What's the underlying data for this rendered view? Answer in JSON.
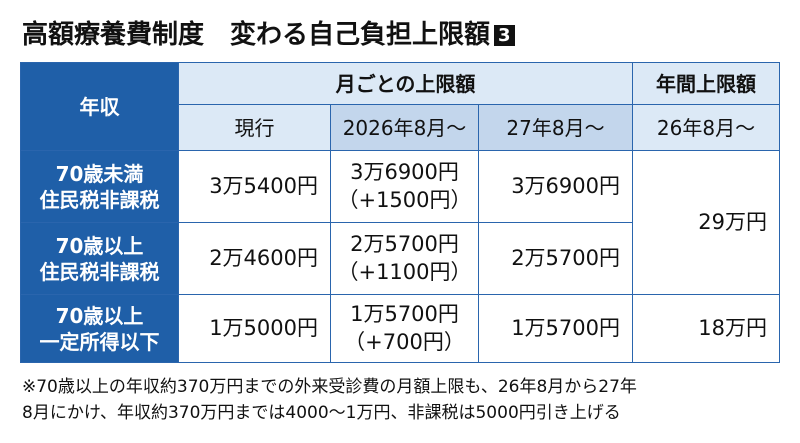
{
  "title": "高額療養費制度　変わる自己負担上限額",
  "badge": "3",
  "table": {
    "header": {
      "income": "年収",
      "monthly": "月ごとの上限額",
      "annual": "年間上限額",
      "current": "現行",
      "from_2026": "2026年8月～",
      "from_27": "27年8月～",
      "annual_from": "26年8月～"
    },
    "rows": [
      {
        "label": [
          "70歳未満",
          "住民税非課税"
        ],
        "current": "3万5400円",
        "from_2026": [
          "3万6900円",
          "（+1500円）"
        ],
        "from_27": "3万6900円",
        "annual": "29万円"
      },
      {
        "label": [
          "70歳以上",
          "住民税非課税"
        ],
        "current": "2万4600円",
        "from_2026": [
          "2万5700円",
          "（+1100円）"
        ],
        "from_27": "2万5700円"
      },
      {
        "label": [
          "70歳以上",
          "一定所得以下"
        ],
        "current": "1万5000円",
        "from_2026": [
          "1万5700円",
          "（+700円）"
        ],
        "from_27": "1万5700円",
        "annual": "18万円"
      }
    ]
  },
  "footnote": [
    "※70歳以上の年収約370万円までの外来受診費の月額上限も、26年8月から27年",
    "8月にかけ、年収約370万円までは4000～1万円、非課税は5000円引き上げる"
  ]
}
